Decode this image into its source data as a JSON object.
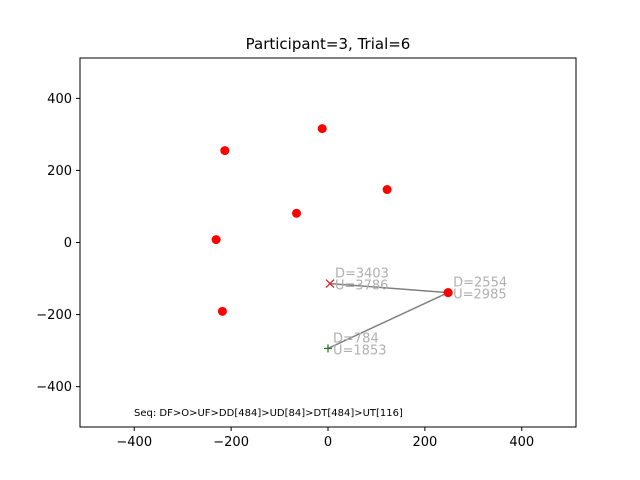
{
  "chart_data": {
    "type": "scatter",
    "title": "Participant=3, Trial=6",
    "xlabel": "",
    "ylabel": "",
    "xlim": [
      -512,
      512
    ],
    "ylim": [
      -512,
      512
    ],
    "xticks": [
      -400,
      -200,
      0,
      200,
      400
    ],
    "yticks": [
      -400,
      -200,
      0,
      200,
      400
    ],
    "xtick_labels": [
      "−400",
      "−200",
      "0",
      "200",
      "400"
    ],
    "ytick_labels": [
      "−400",
      "−200",
      "0",
      "200",
      "400"
    ],
    "grid": false,
    "colors": {
      "points": "#ff0000",
      "path": "#808080",
      "start": "#2a7a2a",
      "end": "#d62728",
      "annotation": "#b0b0b0"
    },
    "points": [
      {
        "x": -12,
        "y": 316
      },
      {
        "x": -213,
        "y": 255
      },
      {
        "x": 122,
        "y": 147
      },
      {
        "x": -65,
        "y": 81
      },
      {
        "x": -231,
        "y": 8
      },
      {
        "x": -218,
        "y": -191
      },
      {
        "x": 248,
        "y": -139
      }
    ],
    "path": [
      {
        "x": 0,
        "y": -294,
        "marker": "+"
      },
      {
        "x": 248,
        "y": -139,
        "marker": "o"
      },
      {
        "x": 4,
        "y": -114,
        "marker": "x"
      }
    ],
    "annotations": [
      {
        "x": 0,
        "y": -294,
        "lines": [
          "D=784",
          "U=1853"
        ]
      },
      {
        "x": 248,
        "y": -139,
        "lines": [
          "D=2554",
          "U=2985"
        ]
      },
      {
        "x": 4,
        "y": -114,
        "lines": [
          "D=3403",
          "U=3786"
        ]
      }
    ],
    "footer_text": "Seq: DF>O>UF>DD[484]>UD[84]>DT[484]>UT[116]"
  }
}
